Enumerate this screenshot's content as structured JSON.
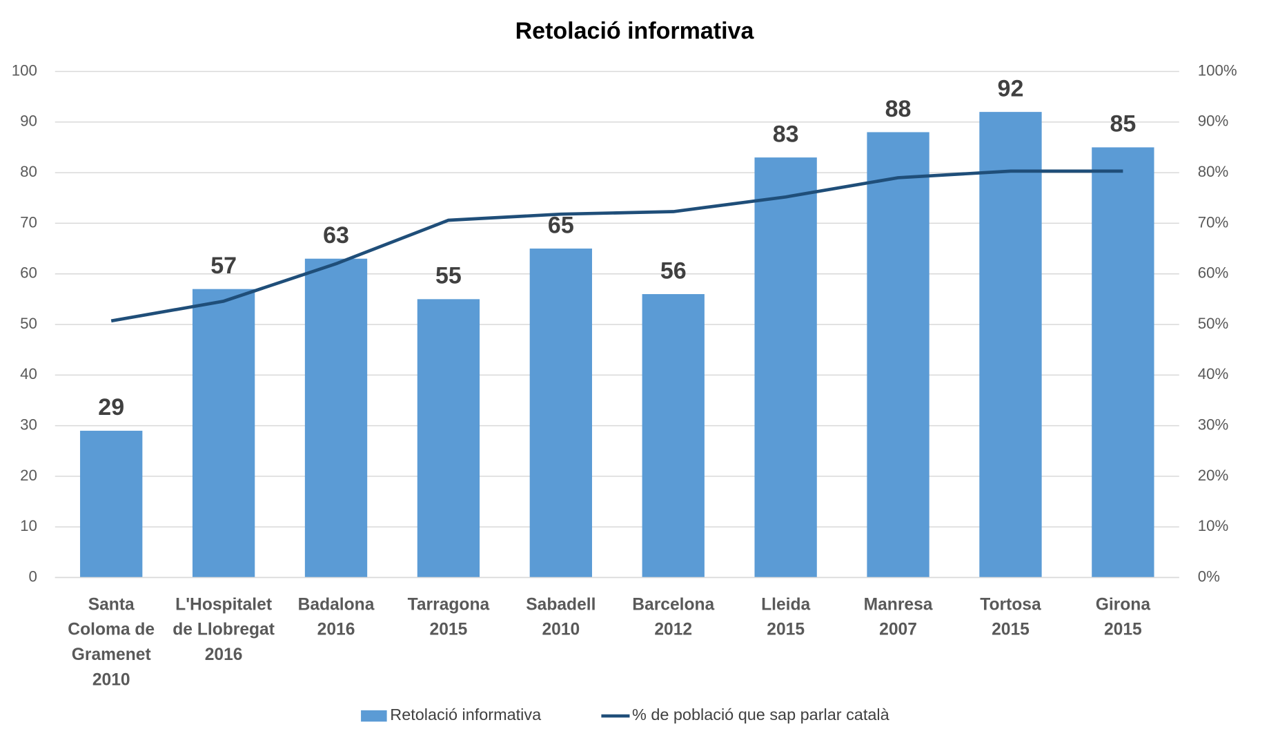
{
  "chart_data": {
    "type": "bar",
    "title": "Retolació informativa",
    "categories": [
      [
        "Santa",
        "Coloma de",
        "Gramenet",
        "2010"
      ],
      [
        "L'Hospitalet",
        "de Llobregat",
        "2016"
      ],
      [
        "Badalona",
        "2016"
      ],
      [
        "Tarragona",
        "2015"
      ],
      [
        "Sabadell",
        "2010"
      ],
      [
        "Barcelona",
        "2012"
      ],
      [
        "Lleida",
        "2015"
      ],
      [
        "Manresa",
        "2007"
      ],
      [
        "Tortosa",
        "2015"
      ],
      [
        "Girona",
        "2015"
      ]
    ],
    "series": [
      {
        "name": "Retolació informativa",
        "type": "bar",
        "color": "#5b9bd5",
        "values": [
          29,
          57,
          63,
          55,
          65,
          56,
          83,
          88,
          92,
          85
        ]
      },
      {
        "name": "% de població que sap parlar català",
        "type": "line",
        "axis": "y2",
        "color": "#1f4e79",
        "values": [
          50.7,
          54.6,
          62,
          70.6,
          71.8,
          72.3,
          75.2,
          79,
          80.3,
          80.3
        ]
      }
    ],
    "ylim": [
      0,
      100
    ],
    "yticks": [
      0,
      10,
      20,
      30,
      40,
      50,
      60,
      70,
      80,
      90,
      100
    ],
    "y2lim": [
      0,
      100
    ],
    "y2ticks": [
      {
        "value": 0,
        "label": "0%"
      },
      {
        "value": 10,
        "label": "10%"
      },
      {
        "value": 20,
        "label": "20%"
      },
      {
        "value": 30,
        "label": "30%"
      },
      {
        "value": 40,
        "label": "40%"
      },
      {
        "value": 50,
        "label": "50%"
      },
      {
        "value": 60,
        "label": "60%"
      },
      {
        "value": 70,
        "label": "70%"
      },
      {
        "value": 80,
        "label": "80%"
      },
      {
        "value": 90,
        "label": "90%"
      },
      {
        "value": 100,
        "label": "100%"
      }
    ],
    "grid": true,
    "legend": "bottom"
  }
}
